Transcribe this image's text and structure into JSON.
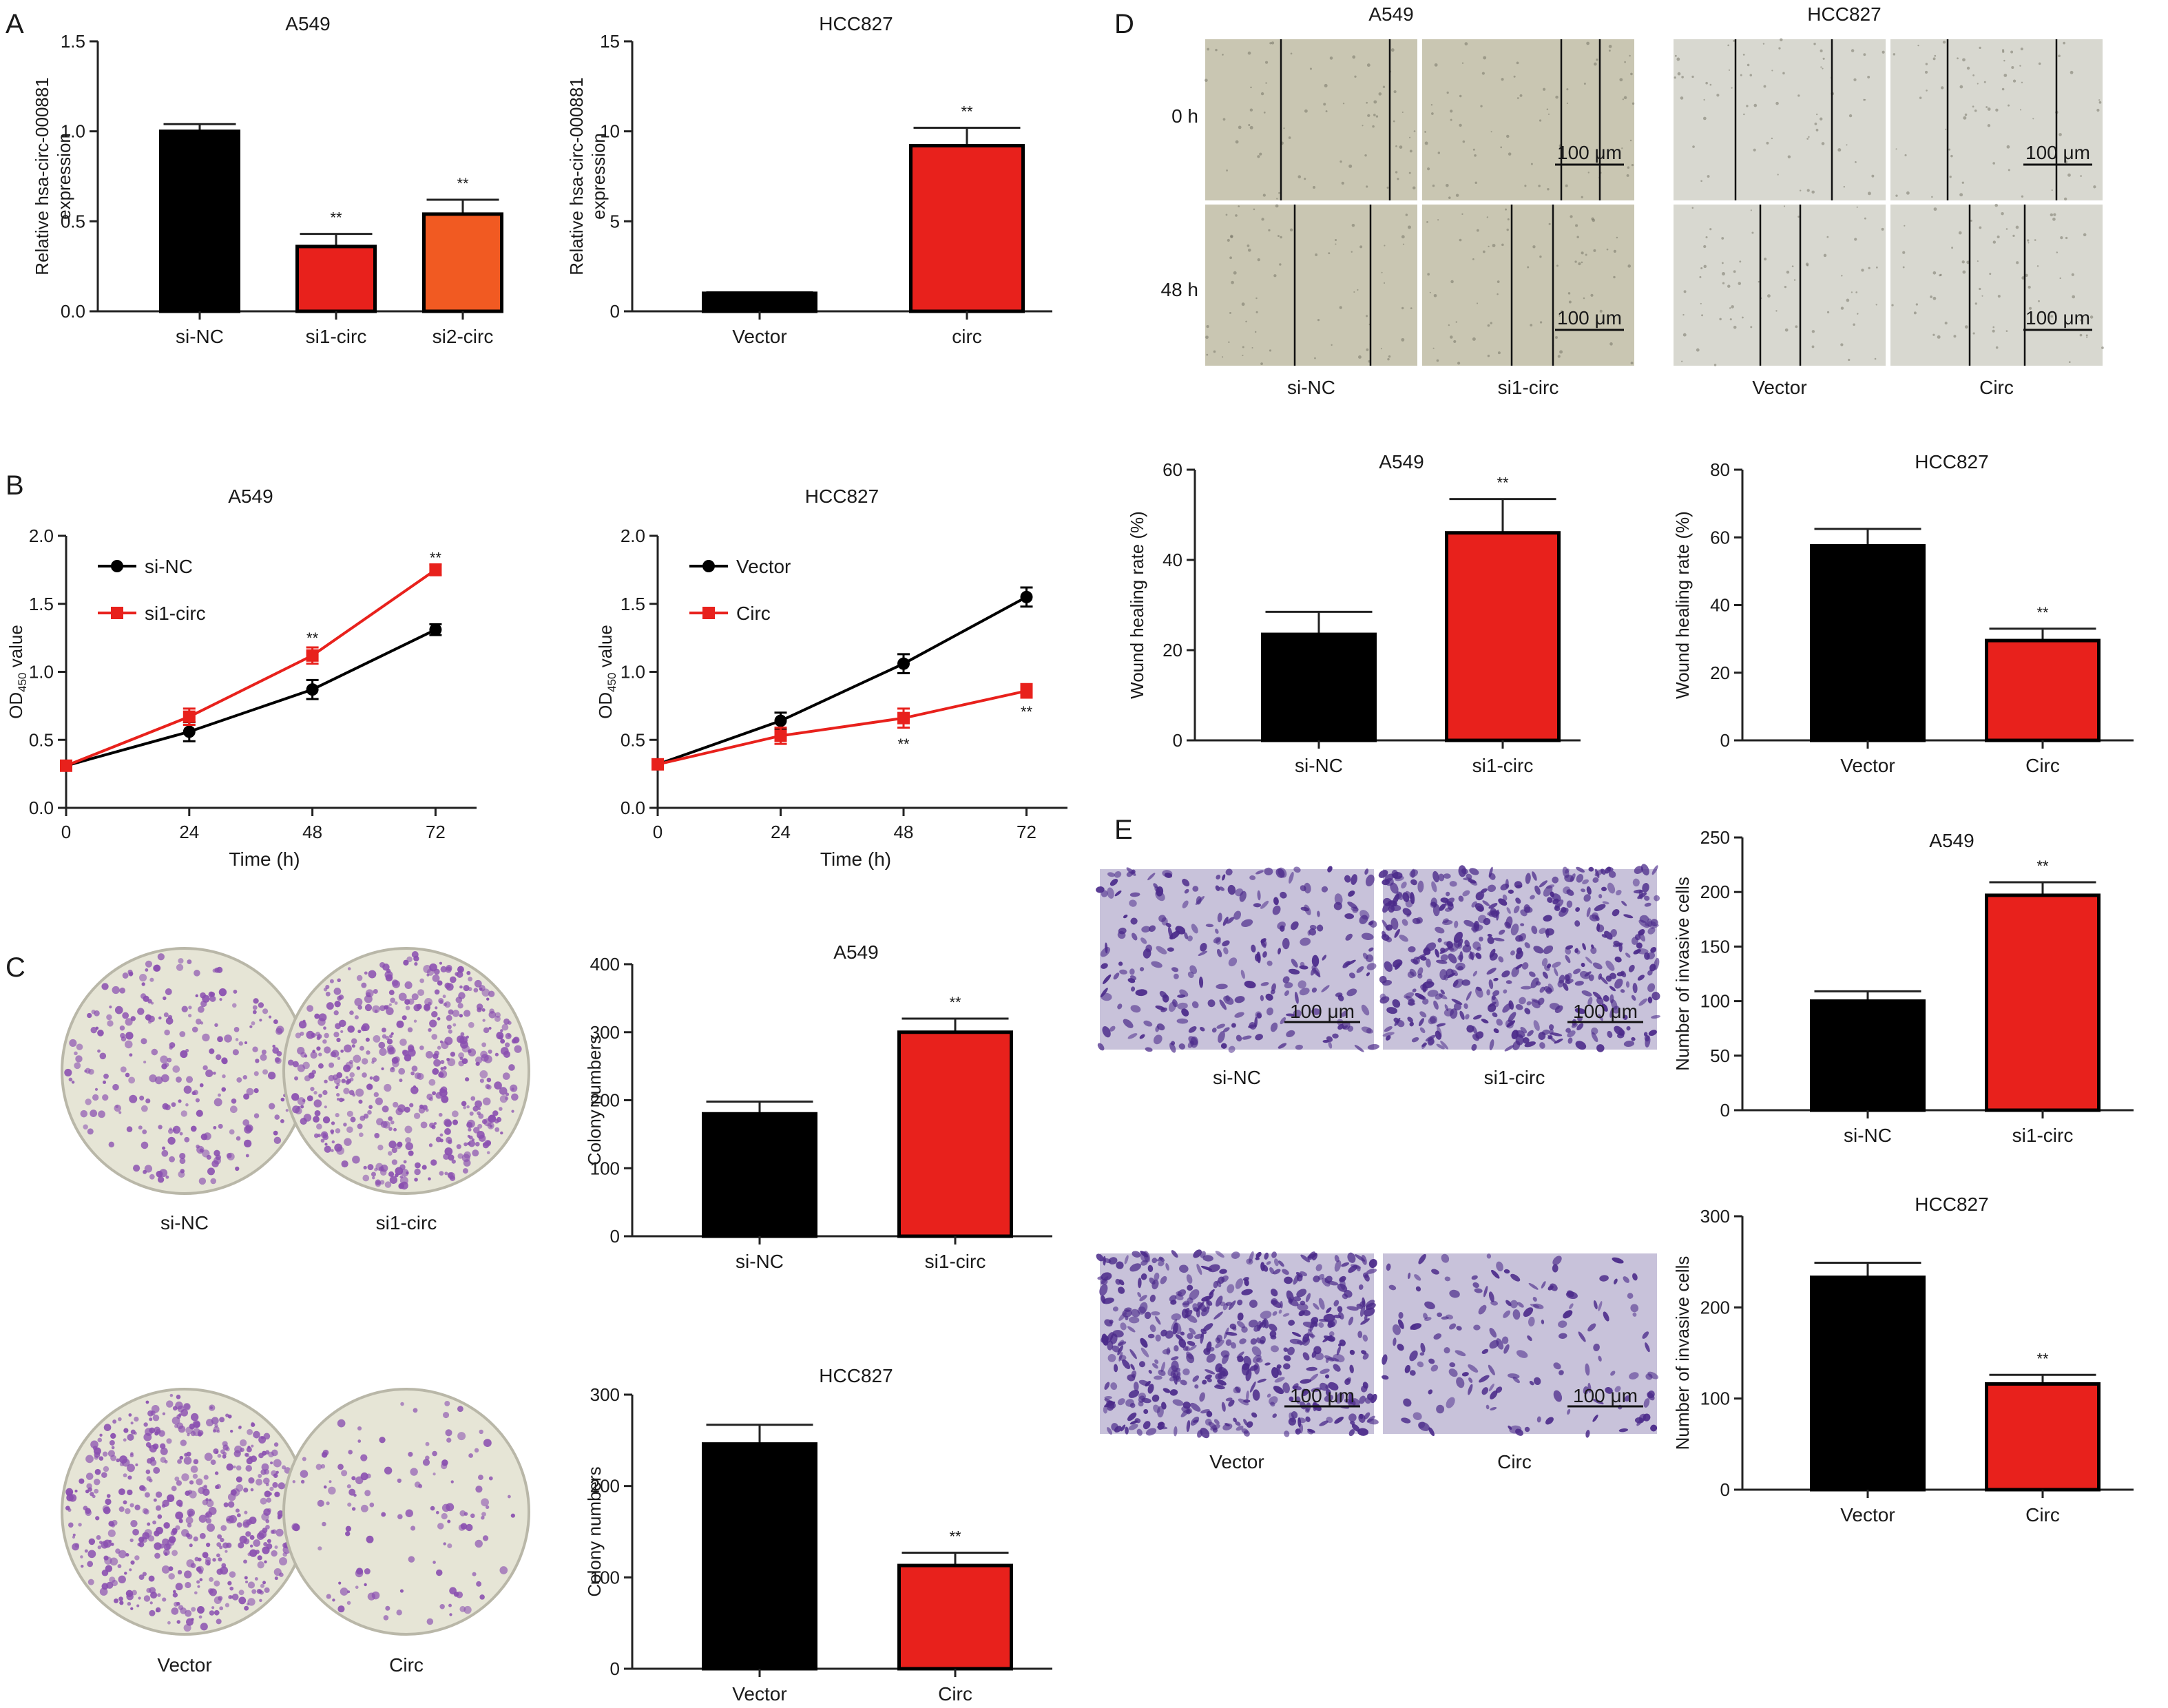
{
  "panel_labels": [
    "A",
    "B",
    "C",
    "D",
    "E"
  ],
  "colors": {
    "black": "#000000",
    "red": "#e8211c",
    "orange": "#f15a22",
    "text": "#1a1a1a",
    "wound_bg": "#c9c6b2",
    "wound_bg_light": "#d8d8d0",
    "dish_bg": "#e6e5d6",
    "colony": "#8a4fb0",
    "transwell_bg": "#c8c2da",
    "transwell_cell": "#4b2a8a"
  },
  "chart_data": [
    {
      "id": "A-left",
      "type": "bar",
      "panel": "A",
      "title": "A549",
      "ylabel": [
        "Relative hsa-circ-000881",
        "expression"
      ],
      "categories": [
        "si-NC",
        "si1-circ",
        "si2-circ"
      ],
      "values": [
        1.0,
        0.36,
        0.54
      ],
      "errors": [
        0.04,
        0.07,
        0.08
      ],
      "sig": [
        "",
        "**",
        "**"
      ],
      "colors": [
        "#000000",
        "#e8211c",
        "#f15a22"
      ],
      "ylim": [
        0,
        1.5
      ],
      "yticks": [
        0.0,
        0.5,
        1.0,
        1.5
      ],
      "ytick_labels": [
        "0.0",
        "0.5",
        "1.0",
        "1.5"
      ]
    },
    {
      "id": "A-right",
      "type": "bar",
      "panel": "A",
      "title": "HCC827",
      "ylabel": [
        "Relative hsa-circ-000881",
        "expression"
      ],
      "categories": [
        "Vector",
        "circ"
      ],
      "values": [
        1.0,
        9.2
      ],
      "errors": [
        0.05,
        1.0
      ],
      "sig": [
        "",
        "**"
      ],
      "colors": [
        "#000000",
        "#e8211c"
      ],
      "ylim": [
        0,
        15
      ],
      "yticks": [
        0,
        5,
        10,
        15
      ],
      "ytick_labels": [
        "0",
        "5",
        "10",
        "15"
      ]
    },
    {
      "id": "B-left",
      "type": "line",
      "panel": "B",
      "title": "A549",
      "ylabel": "OD450 value",
      "xlabel": "Time (h)",
      "x": [
        0,
        24,
        48,
        72
      ],
      "series": [
        {
          "name": "si-NC",
          "values": [
            0.31,
            0.56,
            0.87,
            1.31
          ],
          "errors": [
            0.02,
            0.07,
            0.07,
            0.04
          ],
          "color": "#000000",
          "marker": "circle"
        },
        {
          "name": "si1-circ",
          "values": [
            0.31,
            0.67,
            1.12,
            1.75
          ],
          "errors": [
            0.02,
            0.06,
            0.06,
            0.04
          ],
          "color": "#e8211c",
          "marker": "square"
        }
      ],
      "annotations": [
        {
          "x": 48,
          "y": 1.25,
          "text": "**"
        },
        {
          "x": 72,
          "y": 1.84,
          "text": "**"
        }
      ],
      "xlim": [
        0,
        80
      ],
      "xticks": [
        0,
        24,
        48,
        72
      ],
      "ylim": [
        0,
        2.0
      ],
      "yticks": [
        0,
        0.5,
        1.0,
        1.5,
        2.0
      ],
      "ytick_labels": [
        "0.0",
        "0.5",
        "1.0",
        "1.5",
        "2.0"
      ],
      "legend": "top-left"
    },
    {
      "id": "B-right",
      "type": "line",
      "panel": "B",
      "title": "HCC827",
      "ylabel": "OD450 value",
      "xlabel": "Time (h)",
      "x": [
        0,
        24,
        48,
        72
      ],
      "series": [
        {
          "name": "Vector",
          "values": [
            0.32,
            0.64,
            1.06,
            1.55
          ],
          "errors": [
            0.02,
            0.06,
            0.07,
            0.07
          ],
          "color": "#000000",
          "marker": "circle"
        },
        {
          "name": "Circ",
          "values": [
            0.32,
            0.53,
            0.66,
            0.86
          ],
          "errors": [
            0.02,
            0.06,
            0.07,
            0.05
          ],
          "color": "#e8211c",
          "marker": "square"
        }
      ],
      "annotations": [
        {
          "x": 48,
          "y": 0.47,
          "text": "**"
        },
        {
          "x": 72,
          "y": 0.71,
          "text": "**"
        }
      ],
      "xlim": [
        0,
        80
      ],
      "xticks": [
        0,
        24,
        48,
        72
      ],
      "ylim": [
        0,
        2.0
      ],
      "yticks": [
        0,
        0.5,
        1.0,
        1.5,
        2.0
      ],
      "ytick_labels": [
        "0.0",
        "0.5",
        "1.0",
        "1.5",
        "2.0"
      ],
      "legend": "top-left"
    },
    {
      "id": "C-top",
      "type": "bar",
      "panel": "C",
      "title": "A549",
      "ylabel": "Colony numbers",
      "categories": [
        "si-NC",
        "si1-circ"
      ],
      "values": [
        180,
        300
      ],
      "errors": [
        18,
        20
      ],
      "sig": [
        "",
        "**"
      ],
      "colors": [
        "#000000",
        "#e8211c"
      ],
      "ylim": [
        0,
        400
      ],
      "yticks": [
        0,
        100,
        200,
        300,
        400
      ],
      "ytick_labels": [
        "0",
        "100",
        "200",
        "300",
        "400"
      ]
    },
    {
      "id": "C-bottom",
      "type": "bar",
      "panel": "C",
      "title": "HCC827",
      "ylabel": "Colony numbers",
      "categories": [
        "Vector",
        "Circ"
      ],
      "values": [
        246,
        113
      ],
      "errors": [
        21,
        14
      ],
      "sig": [
        "",
        "**"
      ],
      "colors": [
        "#000000",
        "#e8211c"
      ],
      "ylim": [
        0,
        300
      ],
      "yticks": [
        0,
        100,
        200,
        300
      ],
      "ytick_labels": [
        "0",
        "100",
        "200",
        "300"
      ]
    },
    {
      "id": "D-left",
      "type": "bar",
      "panel": "D",
      "title": "A549",
      "ylabel": "Wound healing rate (%)",
      "categories": [
        "si-NC",
        "si1-circ"
      ],
      "values": [
        23.5,
        46
      ],
      "errors": [
        5,
        7.5
      ],
      "sig": [
        "",
        "**"
      ],
      "colors": [
        "#000000",
        "#e8211c"
      ],
      "ylim": [
        0,
        60
      ],
      "yticks": [
        0,
        20,
        40,
        60
      ],
      "ytick_labels": [
        "0",
        "20",
        "40",
        "60"
      ]
    },
    {
      "id": "D-right",
      "type": "bar",
      "panel": "D",
      "title": "HCC827",
      "ylabel": "Wound healing rate (%)",
      "categories": [
        "Vector",
        "Circ"
      ],
      "values": [
        57.5,
        29.5
      ],
      "errors": [
        5,
        3.5
      ],
      "sig": [
        "",
        "**"
      ],
      "colors": [
        "#000000",
        "#e8211c"
      ],
      "ylim": [
        0,
        80
      ],
      "yticks": [
        0,
        20,
        40,
        60,
        80
      ],
      "ytick_labels": [
        "0",
        "20",
        "40",
        "60",
        "80"
      ]
    },
    {
      "id": "E-top",
      "type": "bar",
      "panel": "E",
      "title": "A549",
      "ylabel": "Number of invasive cells",
      "categories": [
        "si-NC",
        "si1-circ"
      ],
      "values": [
        100,
        197
      ],
      "errors": [
        9,
        12
      ],
      "sig": [
        "",
        "**"
      ],
      "colors": [
        "#000000",
        "#e8211c"
      ],
      "ylim": [
        0,
        250
      ],
      "yticks": [
        0,
        50,
        100,
        150,
        200,
        250
      ],
      "ytick_labels": [
        "0",
        "50",
        "100",
        "150",
        "200",
        "250"
      ]
    },
    {
      "id": "E-bottom",
      "type": "bar",
      "panel": "E",
      "title": "HCC827",
      "ylabel": "Number of invasive cells",
      "categories": [
        "Vector",
        "Circ"
      ],
      "values": [
        233,
        116
      ],
      "errors": [
        16,
        10
      ],
      "sig": [
        "",
        "**"
      ],
      "colors": [
        "#000000",
        "#e8211c"
      ],
      "ylim": [
        0,
        300
      ],
      "yticks": [
        0,
        100,
        200,
        300
      ],
      "ytick_labels": [
        "0",
        "100",
        "200",
        "300"
      ]
    }
  ],
  "images": {
    "dishes": [
      {
        "label": "si-NC",
        "density": "medium"
      },
      {
        "label": "si1-circ",
        "density": "high"
      },
      {
        "label": "Vector",
        "density": "high"
      },
      {
        "label": "Circ",
        "density": "low"
      }
    ],
    "wound": {
      "groups": [
        "A549",
        "HCC827"
      ],
      "rows": [
        "0 h",
        "48 h"
      ],
      "columns": [
        "si-NC",
        "si1-circ",
        "Vector",
        "Circ"
      ],
      "scale_bar": "100 μm"
    },
    "transwell": {
      "labels": [
        "si-NC",
        "si1-circ",
        "Vector",
        "Circ"
      ],
      "scale_bar": "100 μm"
    }
  }
}
